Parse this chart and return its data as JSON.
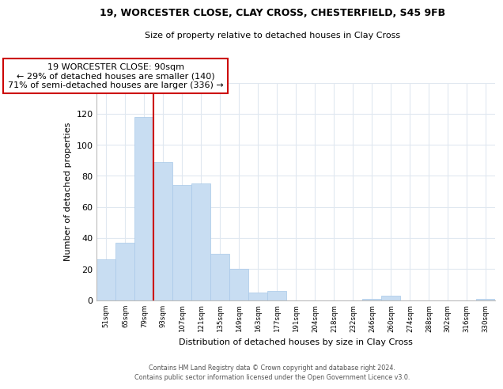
{
  "title": "19, WORCESTER CLOSE, CLAY CROSS, CHESTERFIELD, S45 9FB",
  "subtitle": "Size of property relative to detached houses in Clay Cross",
  "xlabel": "Distribution of detached houses by size in Clay Cross",
  "ylabel": "Number of detached properties",
  "bar_labels": [
    "51sqm",
    "65sqm",
    "79sqm",
    "93sqm",
    "107sqm",
    "121sqm",
    "135sqm",
    "149sqm",
    "163sqm",
    "177sqm",
    "191sqm",
    "204sqm",
    "218sqm",
    "232sqm",
    "246sqm",
    "260sqm",
    "274sqm",
    "288sqm",
    "302sqm",
    "316sqm",
    "330sqm"
  ],
  "bar_values": [
    26,
    37,
    118,
    89,
    74,
    75,
    30,
    20,
    5,
    6,
    0,
    0,
    0,
    0,
    1,
    3,
    0,
    0,
    0,
    0,
    1
  ],
  "bar_color": "#c8ddf2",
  "bar_edge_color": "#a8c8e8",
  "property_line_color": "#cc0000",
  "annotation_title": "19 WORCESTER CLOSE: 90sqm",
  "annotation_line1": "← 29% of detached houses are smaller (140)",
  "annotation_line2": "71% of semi-detached houses are larger (336) →",
  "annotation_box_color": "white",
  "annotation_box_edge": "#cc0000",
  "ylim": [
    0,
    140
  ],
  "yticks": [
    0,
    20,
    40,
    60,
    80,
    100,
    120,
    140
  ],
  "footer_line1": "Contains HM Land Registry data © Crown copyright and database right 2024.",
  "footer_line2": "Contains public sector information licensed under the Open Government Licence v3.0.",
  "background_color": "white",
  "grid_color": "#e0e8f0"
}
